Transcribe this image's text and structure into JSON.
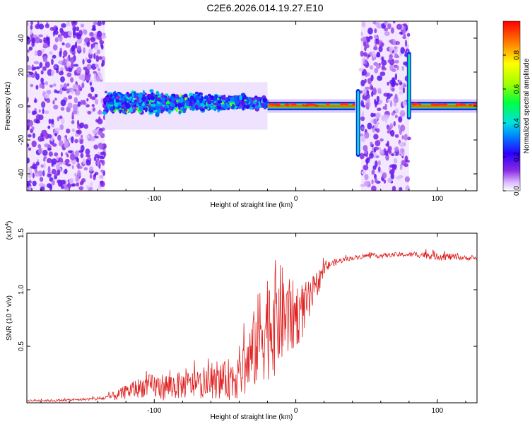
{
  "title": "C2E6.2026.014.19.27.E10",
  "chart_data": [
    {
      "type": "heatmap",
      "name": "spectrogram",
      "xlabel": "Height of straight line (km)",
      "ylabel": "Frequency (Hz)",
      "xlim": [
        -190,
        128
      ],
      "ylim": [
        -50,
        50
      ],
      "xticks": [
        -100,
        0,
        100
      ],
      "yticks": [
        -40,
        -20,
        0,
        20,
        40
      ],
      "colorbar": {
        "label": "Normalized spectral amplitude",
        "range": [
          0.0,
          1.0
        ],
        "ticks": [
          0.0,
          0.2,
          0.4,
          0.6,
          0.8
        ]
      },
      "regions": [
        {
          "x": [
            -190,
            -135
          ],
          "pattern": "broadband noise",
          "level": 0.15
        },
        {
          "x": [
            -135,
            -20
          ],
          "pattern": "scattered band near 0 Hz, spread about ±10 Hz",
          "level": 0.4
        },
        {
          "x": [
            -20,
            42
          ],
          "pattern": "narrow line at 0 Hz",
          "level": 0.9
        },
        {
          "x": [
            46,
            80
          ],
          "pattern": "broadband noise",
          "level": 0.15
        },
        {
          "x": [
            80,
            128
          ],
          "pattern": "narrow line at 0 Hz",
          "level": 0.9
        }
      ],
      "spikes": [
        {
          "x": 44,
          "from_hz": -30,
          "to_hz": 10
        },
        {
          "x": 80,
          "from_hz": -8,
          "to_hz": 32
        }
      ]
    },
    {
      "type": "line",
      "name": "snr",
      "xlabel": "Height of straight line (km)",
      "ylabel": "SNR (10 * v/v)",
      "scale_label": "(x10",
      "scale_exponent": "4",
      "xlim": [
        -190,
        128
      ],
      "ylim": [
        0,
        1.5
      ],
      "xticks": [
        -100,
        0,
        100
      ],
      "yticks": [
        0.5,
        1.0,
        1.5
      ],
      "color": "#e02020",
      "series": [
        {
          "name": "SNR",
          "x": [
            -190,
            -170,
            -150,
            -135,
            -125,
            -115,
            -105,
            -95,
            -85,
            -75,
            -65,
            -55,
            -45,
            -35,
            -30,
            -25,
            -20,
            -15,
            -10,
            -5,
            0,
            5,
            10,
            15,
            20,
            25,
            30,
            35,
            40,
            50,
            60,
            70,
            80,
            90,
            100,
            110,
            120,
            128
          ],
          "y": [
            0.02,
            0.02,
            0.03,
            0.04,
            0.07,
            0.12,
            0.15,
            0.14,
            0.15,
            0.16,
            0.16,
            0.18,
            0.22,
            0.32,
            0.45,
            0.62,
            0.7,
            0.75,
            0.78,
            0.75,
            0.78,
            0.82,
            0.9,
            1.05,
            1.18,
            1.23,
            1.25,
            1.27,
            1.28,
            1.3,
            1.3,
            1.31,
            1.31,
            1.31,
            1.3,
            1.29,
            1.28,
            1.28
          ],
          "noise": [
            0.01,
            0.01,
            0.01,
            0.02,
            0.05,
            0.08,
            0.1,
            0.12,
            0.12,
            0.12,
            0.12,
            0.14,
            0.2,
            0.28,
            0.35,
            0.45,
            0.5,
            0.52,
            0.45,
            0.35,
            0.3,
            0.25,
            0.18,
            0.12,
            0.06,
            0.03,
            0.03,
            0.02,
            0.02,
            0.02,
            0.02,
            0.02,
            0.02,
            0.03,
            0.04,
            0.03,
            0.02,
            0.02
          ]
        }
      ]
    }
  ]
}
